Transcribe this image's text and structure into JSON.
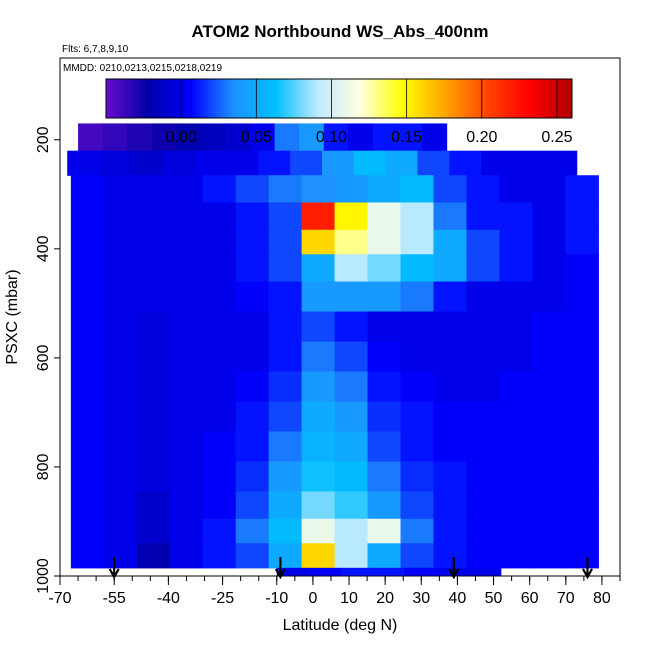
{
  "chart_data": {
    "type": "heatmap",
    "title": "ATOM2 Northbound WS_Abs_400nm",
    "subtitle_flights": "Flts: 6,7,8,9,10",
    "subtitle_dates": "MMDD: 0210,0213,0215,0218,0219",
    "xlabel": "Latitude (deg N)",
    "ylabel": "PSXC (mbar)",
    "xlim": [
      -70,
      85
    ],
    "ylim": [
      1000,
      50
    ],
    "x_ticks": [
      "-70",
      "-55",
      "-40",
      "-25",
      "-10",
      "0",
      "10",
      "20",
      "30",
      "40",
      "50",
      "60",
      "70",
      "80"
    ],
    "y_ticks": [
      "200",
      "400",
      "600",
      "800",
      "1000"
    ],
    "colorbar": {
      "range": [
        -0.05,
        0.26
      ],
      "ticks": [
        "0.00",
        "0.05",
        "0.10",
        "0.15",
        "0.20",
        "0.25"
      ],
      "colors": [
        "#6a0dcc",
        "#0000a8",
        "#0000ff",
        "#1e90ff",
        "#00bfff",
        "#bfeaff",
        "#ffffe0",
        "#ffff00",
        "#ffa500",
        "#ff4500",
        "#ff0000",
        "#b00000"
      ]
    },
    "flight_markers_lat": [
      -55,
      -9,
      39,
      76
    ],
    "rows": [
      {
        "p_top": 170,
        "p_bot": 220,
        "lat_start": -65,
        "lat_end": 37,
        "values": [
          -0.04,
          -0.035,
          -0.03,
          -0.025,
          -0.02,
          -0.015,
          -0.01,
          0.0,
          0.03,
          0.04,
          0.01,
          0.0,
          0.01,
          0.01,
          0.0
        ]
      },
      {
        "p_top": 220,
        "p_bot": 265,
        "lat_start": -68,
        "lat_end": 73,
        "values": [
          0.0,
          -0.005,
          -0.01,
          -0.005,
          0.0,
          0.0,
          0.01,
          0.02,
          0.04,
          0.06,
          0.05,
          0.02,
          0.01,
          0.0,
          0.0,
          0.0
        ]
      },
      {
        "p_top": 265,
        "p_bot": 315,
        "lat_start": -67,
        "lat_end": 79,
        "values": [
          0.005,
          0.0,
          0.0,
          0.0,
          0.01,
          0.02,
          0.03,
          0.035,
          0.04,
          0.05,
          0.06,
          0.02,
          0.01,
          0.0,
          0.0,
          0.01
        ]
      },
      {
        "p_top": 315,
        "p_bot": 365,
        "lat_start": -67,
        "lat_end": 79,
        "values": [
          0.005,
          0.0,
          0.0,
          0.0,
          0.0,
          0.01,
          0.02,
          0.22,
          0.15,
          0.11,
          0.09,
          0.03,
          0.01,
          0.01,
          0.0,
          0.01
        ]
      },
      {
        "p_top": 365,
        "p_bot": 410,
        "lat_start": -67,
        "lat_end": 79,
        "values": [
          0.005,
          0.0,
          0.0,
          0.0,
          0.0,
          0.01,
          0.02,
          0.16,
          0.13,
          0.11,
          0.09,
          0.05,
          0.02,
          0.01,
          0.0,
          0.01
        ]
      },
      {
        "p_top": 410,
        "p_bot": 460,
        "lat_start": -67,
        "lat_end": 79,
        "values": [
          0.005,
          0.0,
          0.0,
          0.0,
          0.0,
          0.01,
          0.02,
          0.05,
          0.09,
          0.08,
          0.06,
          0.05,
          0.02,
          0.01,
          0.0,
          0.005
        ]
      },
      {
        "p_top": 460,
        "p_bot": 515,
        "lat_start": -67,
        "lat_end": 79,
        "values": [
          0.005,
          0.0,
          0.0,
          0.0,
          0.0,
          0.005,
          0.01,
          0.04,
          0.04,
          0.04,
          0.03,
          0.01,
          0.0,
          0.0,
          0.0,
          0.005
        ]
      },
      {
        "p_top": 515,
        "p_bot": 570,
        "lat_start": -67,
        "lat_end": 79,
        "values": [
          0.005,
          0.0,
          -0.005,
          0.0,
          0.0,
          0.0,
          0.01,
          0.02,
          0.01,
          0.0,
          0.0,
          0.0,
          0.0,
          0.0,
          0.005,
          0.005
        ]
      },
      {
        "p_top": 570,
        "p_bot": 625,
        "lat_start": -67,
        "lat_end": 79,
        "values": [
          0.005,
          0.0,
          -0.005,
          0.0,
          0.0,
          0.0,
          0.01,
          0.03,
          0.02,
          0.005,
          0.0,
          0.0,
          0.0,
          0.0,
          0.005,
          0.005
        ]
      },
      {
        "p_top": 625,
        "p_bot": 680,
        "lat_start": -67,
        "lat_end": 79,
        "values": [
          0.005,
          0.0,
          -0.005,
          0.0,
          0.0,
          0.005,
          0.015,
          0.04,
          0.03,
          0.01,
          0.005,
          0.0,
          0.0,
          0.005,
          0.005,
          0.005
        ]
      },
      {
        "p_top": 680,
        "p_bot": 735,
        "lat_start": -67,
        "lat_end": 79,
        "values": [
          0.005,
          0.0,
          -0.005,
          0.0,
          0.0,
          0.01,
          0.02,
          0.05,
          0.04,
          0.015,
          0.01,
          0.005,
          0.005,
          0.005,
          0.005,
          0.005
        ]
      },
      {
        "p_top": 735,
        "p_bot": 790,
        "lat_start": -67,
        "lat_end": 79,
        "values": [
          0.005,
          0.0,
          -0.005,
          0.0,
          0.005,
          0.01,
          0.03,
          0.055,
          0.05,
          0.02,
          0.01,
          0.005,
          0.005,
          0.005,
          0.005,
          0.005
        ]
      },
      {
        "p_top": 790,
        "p_bot": 845,
        "lat_start": -67,
        "lat_end": 79,
        "values": [
          0.005,
          0.0,
          -0.005,
          0.0,
          0.005,
          0.015,
          0.04,
          0.065,
          0.06,
          0.03,
          0.015,
          0.01,
          0.005,
          0.005,
          0.005,
          0.005
        ]
      },
      {
        "p_top": 845,
        "p_bot": 895,
        "lat_start": -67,
        "lat_end": 79,
        "values": [
          0.005,
          0.0,
          -0.01,
          0.0,
          0.005,
          0.02,
          0.05,
          0.08,
          0.07,
          0.04,
          0.02,
          0.01,
          0.005,
          0.005,
          0.005,
          0.005
        ]
      },
      {
        "p_top": 895,
        "p_bot": 940,
        "lat_start": -67,
        "lat_end": 79,
        "values": [
          0.005,
          0.0,
          -0.01,
          0.0,
          0.01,
          0.03,
          0.06,
          0.11,
          0.09,
          0.11,
          0.03,
          0.01,
          0.005,
          0.005,
          0.005,
          0.005
        ]
      },
      {
        "p_top": 940,
        "p_bot": 985,
        "lat_start": -67,
        "lat_end": 79,
        "values": [
          0.005,
          0.0,
          -0.02,
          0.0,
          0.01,
          0.02,
          0.05,
          0.16,
          0.09,
          0.05,
          0.02,
          0.01,
          0.005,
          0.005,
          0.005,
          0.005
        ]
      },
      {
        "p_top": 985,
        "p_bot": 1030,
        "lat_start": -10,
        "lat_end": 52,
        "values": [
          0.0,
          0.005,
          0.01,
          0.01,
          0.005,
          0.0,
          0.0
        ]
      }
    ]
  }
}
